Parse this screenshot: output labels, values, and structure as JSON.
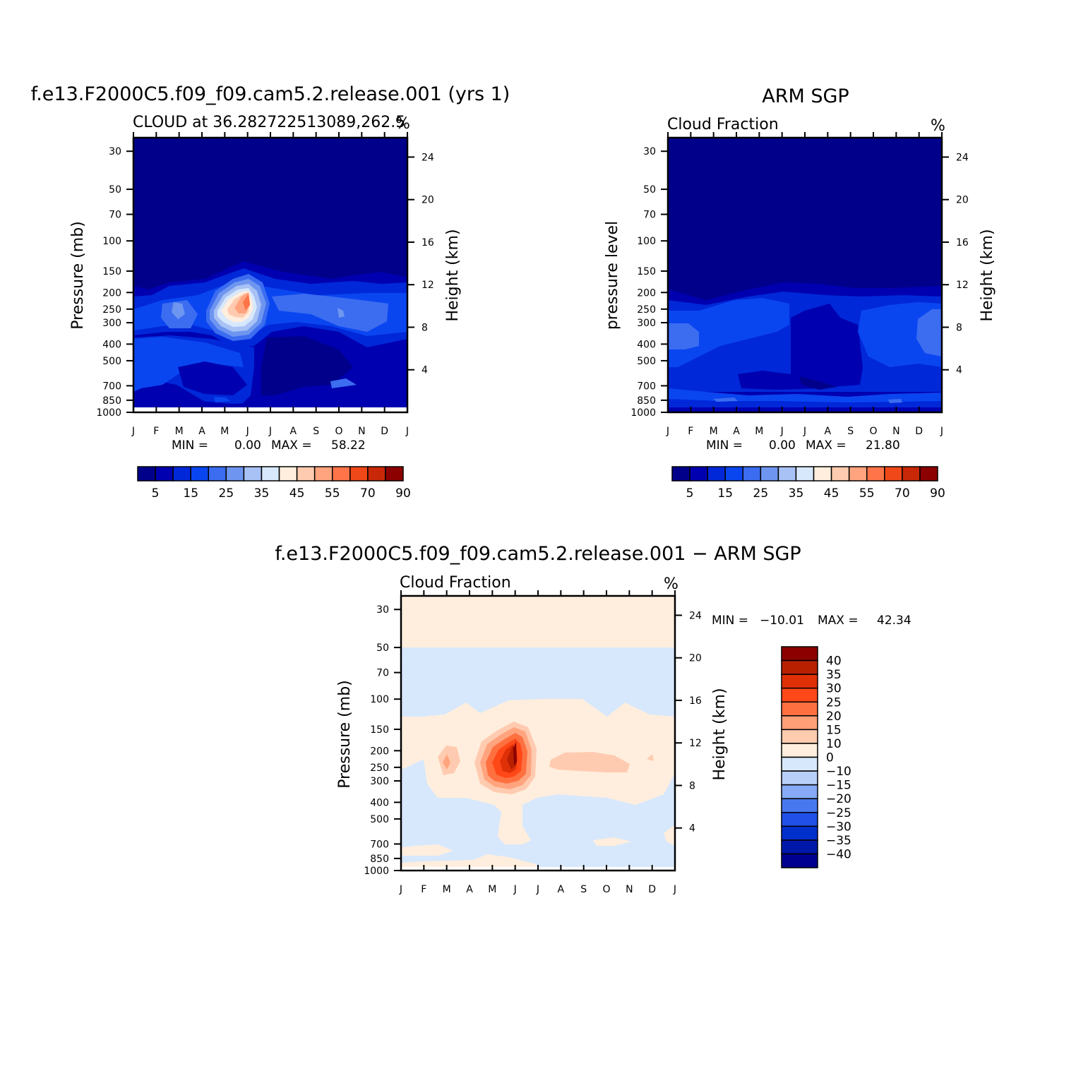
{
  "chart_data": [
    {
      "type": "heatmap",
      "id": "model",
      "title": "f.e13.F2000C5.f09_f09.cam5.2.release.001  (yrs  1)",
      "subtitle": "CLOUD  at  36.282722513089,262.5",
      "units": "%",
      "ylabel_left": "Pressure  (mb)",
      "ylabel_right": "Height  (km)",
      "x_ticks": [
        "J",
        "F",
        "M",
        "A",
        "M",
        "J",
        "J",
        "A",
        "S",
        "O",
        "N",
        "D",
        "J"
      ],
      "pressure_ticks": [
        30,
        50,
        70,
        100,
        150,
        200,
        250,
        300,
        400,
        500,
        700,
        850,
        1000
      ],
      "height_ticks": [
        24,
        20,
        16,
        12,
        8,
        4
      ],
      "ylim_mb": [
        1000,
        25
      ],
      "stats_text": [
        "MIN  =",
        "0.00",
        "MAX  =",
        "58.22"
      ],
      "colorbar": {
        "orientation": "horizontal",
        "colors": [
          "#00008b",
          "#0000b0",
          "#0028d8",
          "#0a46f0",
          "#3c6cf0",
          "#6e96f0",
          "#a8c2f5",
          "#d8e8fc",
          "#ffeedd",
          "#ffcbb0",
          "#ffa47e",
          "#ff7448",
          "#f04818",
          "#c82808",
          "#8c0000"
        ],
        "labels": [
          "5",
          "15",
          "25",
          "35",
          "45",
          "55",
          "70",
          "90"
        ]
      }
    },
    {
      "type": "heatmap",
      "id": "obs",
      "title": "ARM  SGP",
      "subtitle": "Cloud  Fraction",
      "units": "%",
      "ylabel_left": "pressure  level",
      "ylabel_right": "Height  (km)",
      "x_ticks": [
        "J",
        "F",
        "M",
        "A",
        "M",
        "J",
        "J",
        "A",
        "S",
        "O",
        "N",
        "D",
        "J"
      ],
      "pressure_ticks": [
        30,
        50,
        70,
        100,
        150,
        200,
        250,
        300,
        400,
        500,
        700,
        850,
        1000
      ],
      "height_ticks": [
        24,
        20,
        16,
        12,
        8,
        4
      ],
      "ylim_mb": [
        1000,
        25
      ],
      "stats_text": [
        "MIN  =",
        "0.00",
        "MAX  =",
        "21.80"
      ],
      "colorbar": {
        "orientation": "horizontal",
        "colors": [
          "#00008b",
          "#0000b0",
          "#0028d8",
          "#0a46f0",
          "#3c6cf0",
          "#6e96f0",
          "#a8c2f5",
          "#d8e8fc",
          "#ffeedd",
          "#ffcbb0",
          "#ffa47e",
          "#ff7448",
          "#f04818",
          "#c82808",
          "#8c0000"
        ],
        "labels": [
          "5",
          "15",
          "25",
          "35",
          "45",
          "55",
          "70",
          "90"
        ]
      }
    },
    {
      "type": "heatmap",
      "id": "diff",
      "title": "f.e13.F2000C5.f09_f09.cam5.2.release.001  −  ARM  SGP",
      "subtitle": "Cloud  Fraction",
      "units": "%",
      "ylabel_left": "Pressure  (mb)",
      "ylabel_right": "Height  (km)",
      "x_ticks": [
        "J",
        "F",
        "M",
        "A",
        "M",
        "J",
        "J",
        "A",
        "S",
        "O",
        "N",
        "D",
        "J"
      ],
      "pressure_ticks": [
        30,
        50,
        70,
        100,
        150,
        200,
        250,
        300,
        400,
        500,
        700,
        850,
        1000
      ],
      "height_ticks": [
        24,
        20,
        16,
        12,
        8,
        4
      ],
      "ylim_mb": [
        1000,
        25
      ],
      "stats_text": [
        "MIN  =",
        "−10.01",
        "MAX  =",
        "42.34"
      ],
      "colorbar": {
        "orientation": "vertical",
        "colors": [
          "#8c0000",
          "#b82000",
          "#e03008",
          "#ff4818",
          "#ff7040",
          "#ff9f78",
          "#ffccb0",
          "#ffeedd",
          "#d8e8fc",
          "#b8cff8",
          "#86aaf5",
          "#4878f0",
          "#2050e8",
          "#0030cc",
          "#0018aa",
          "#000090"
        ],
        "labels": [
          "40",
          "35",
          "30",
          "25",
          "20",
          "15",
          "10",
          "0",
          "−10",
          "−15",
          "−20",
          "−25",
          "−30",
          "−35",
          "−40"
        ]
      }
    }
  ]
}
